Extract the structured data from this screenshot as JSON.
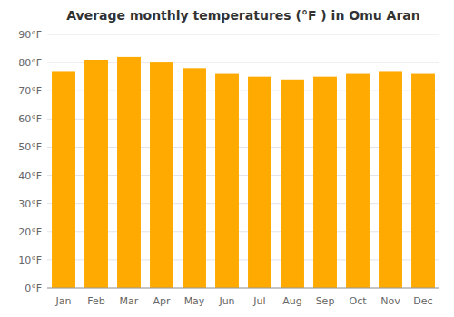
{
  "chart_data": {
    "type": "bar",
    "title": "Average monthly temperatures (°F ) in Omu Aran",
    "categories": [
      "Jan",
      "Feb",
      "Mar",
      "Apr",
      "May",
      "Jun",
      "Jul",
      "Aug",
      "Sep",
      "Oct",
      "Nov",
      "Dec"
    ],
    "values": [
      77,
      81,
      82,
      80,
      78,
      76,
      75,
      74,
      75,
      76,
      77,
      76
    ],
    "color": "#FFAA00",
    "ylim": [
      0,
      90
    ],
    "yticks": [
      {
        "value": 0,
        "label": "0°F"
      },
      {
        "value": 10,
        "label": "10°F"
      },
      {
        "value": 20,
        "label": "20°F"
      },
      {
        "value": 30,
        "label": "30°F"
      },
      {
        "value": 40,
        "label": "40°F"
      },
      {
        "value": 50,
        "label": "50°F"
      },
      {
        "value": 60,
        "label": "60°F"
      },
      {
        "value": 70,
        "label": "70°F"
      },
      {
        "value": 80,
        "label": "80°F"
      },
      {
        "value": 90,
        "label": "90°F"
      }
    ],
    "grid": true
  }
}
